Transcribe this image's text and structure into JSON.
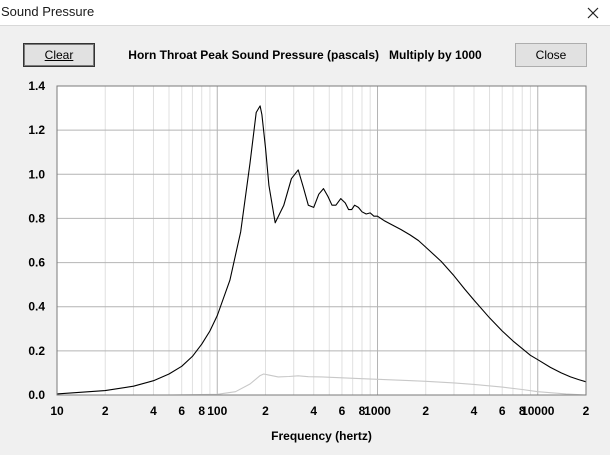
{
  "window": {
    "title": "Sound Pressure",
    "close_icon": "close-icon"
  },
  "toolbar": {
    "clear_label": "Clear",
    "heading": "Horn Throat Peak Sound Pressure (pascals)   Multiply by 1000",
    "close_label": "Close"
  },
  "chart_data": {
    "type": "line",
    "title": "Horn Throat Peak Sound Pressure (pascals)   Multiply by 1000",
    "xlabel": "Frequency (hertz)",
    "ylabel": "",
    "x_scale": "log",
    "xlim": [
      10,
      20000
    ],
    "ylim": [
      0,
      1.4
    ],
    "grid": true,
    "y_ticks": [
      "0.0",
      "0.2",
      "0.4",
      "0.6",
      "0.8",
      "1.0",
      "1.2",
      "1.4"
    ],
    "x_ticks": [
      {
        "value": 10,
        "label": "10"
      },
      {
        "value": 20,
        "label": "2"
      },
      {
        "value": 40,
        "label": "4"
      },
      {
        "value": 60,
        "label": "6"
      },
      {
        "value": 80,
        "label": "8"
      },
      {
        "value": 100,
        "label": "100"
      },
      {
        "value": 200,
        "label": "2"
      },
      {
        "value": 400,
        "label": "4"
      },
      {
        "value": 600,
        "label": "6"
      },
      {
        "value": 800,
        "label": "8"
      },
      {
        "value": 1000,
        "label": "1000"
      },
      {
        "value": 2000,
        "label": "2"
      },
      {
        "value": 4000,
        "label": "4"
      },
      {
        "value": 6000,
        "label": "6"
      },
      {
        "value": 8000,
        "label": "8"
      },
      {
        "value": 10000,
        "label": "10000"
      },
      {
        "value": 20000,
        "label": "2"
      }
    ],
    "series": [
      {
        "color": "#000000",
        "x": [
          10,
          20,
          30,
          40,
          50,
          60,
          70,
          80,
          90,
          100,
          120,
          140,
          160,
          175,
          185,
          190,
          200,
          210,
          230,
          260,
          290,
          320,
          345,
          370,
          400,
          430,
          460,
          490,
          520,
          550,
          590,
          630,
          660,
          690,
          720,
          760,
          800,
          850,
          900,
          950,
          1000,
          1100,
          1200,
          1400,
          1600,
          1800,
          2000,
          2500,
          3000,
          3500,
          4000,
          5000,
          6000,
          7000,
          8000,
          9000,
          10000,
          12000,
          14000,
          16000,
          18000,
          20000
        ],
        "values": [
          0.005,
          0.02,
          0.04,
          0.065,
          0.095,
          0.13,
          0.175,
          0.23,
          0.29,
          0.36,
          0.52,
          0.74,
          1.05,
          1.28,
          1.31,
          1.27,
          1.12,
          0.95,
          0.78,
          0.86,
          0.98,
          1.02,
          0.94,
          0.86,
          0.85,
          0.91,
          0.935,
          0.9,
          0.86,
          0.86,
          0.89,
          0.87,
          0.84,
          0.84,
          0.86,
          0.85,
          0.83,
          0.82,
          0.825,
          0.81,
          0.81,
          0.79,
          0.775,
          0.75,
          0.725,
          0.7,
          0.67,
          0.605,
          0.54,
          0.48,
          0.43,
          0.35,
          0.29,
          0.245,
          0.21,
          0.18,
          0.16,
          0.125,
          0.1,
          0.082,
          0.07,
          0.06
        ]
      },
      {
        "color": "#c8c8c8",
        "x": [
          10,
          50,
          100,
          130,
          160,
          185,
          195,
          210,
          240,
          280,
          320,
          370,
          450,
          600,
          800,
          1000,
          1500,
          2000,
          3000,
          4000,
          6000,
          8000,
          10000,
          15000,
          20000
        ],
        "values": [
          0.0,
          0.0,
          0.003,
          0.015,
          0.05,
          0.088,
          0.095,
          0.09,
          0.082,
          0.084,
          0.087,
          0.083,
          0.082,
          0.078,
          0.074,
          0.071,
          0.066,
          0.062,
          0.055,
          0.048,
          0.036,
          0.025,
          0.015,
          0.005,
          0.0
        ]
      }
    ]
  }
}
